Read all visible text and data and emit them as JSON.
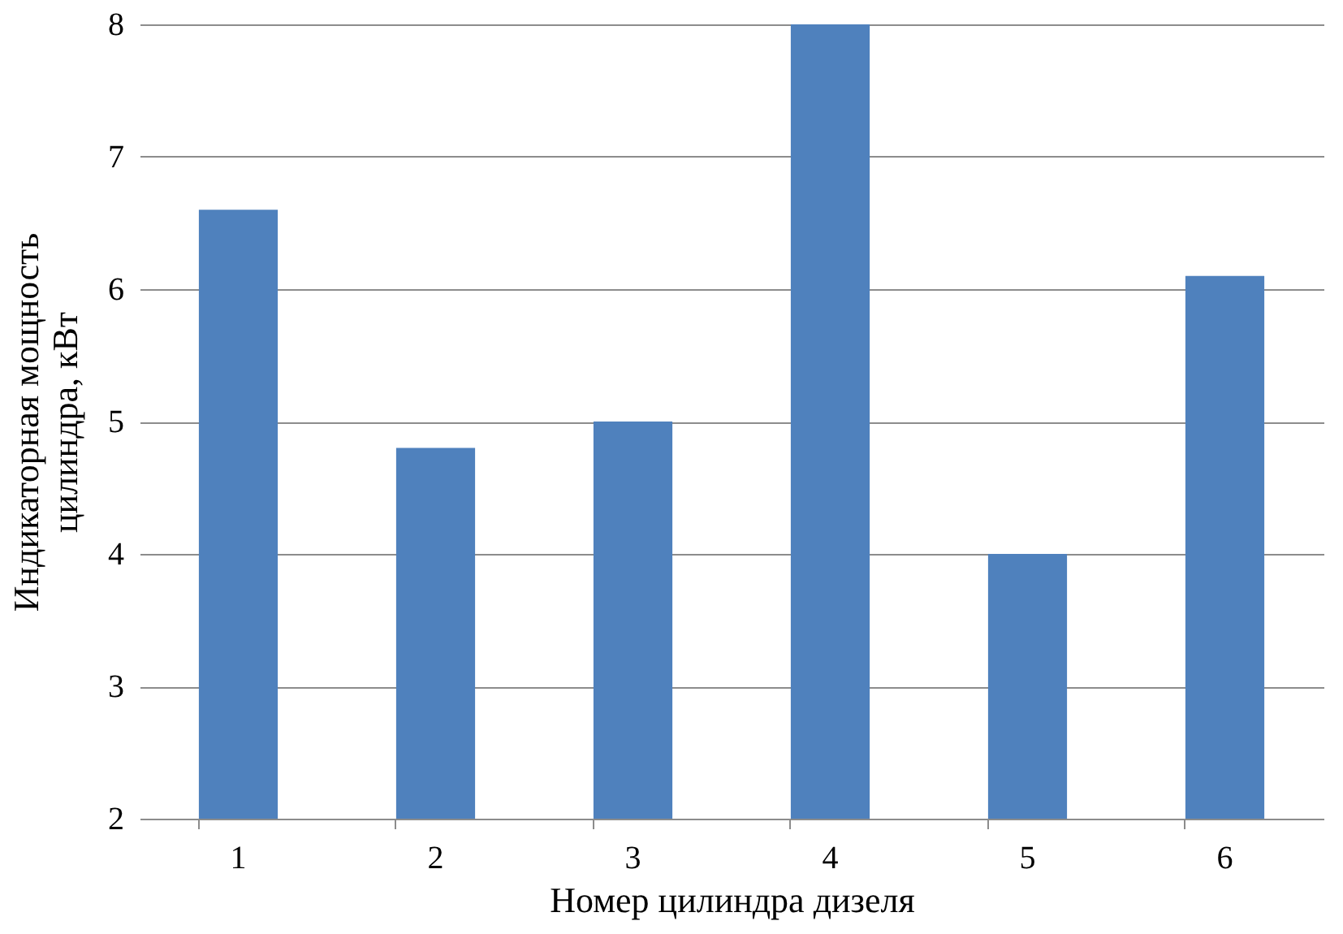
{
  "chart_data": {
    "type": "bar",
    "categories": [
      "1",
      "2",
      "3",
      "4",
      "5",
      "6"
    ],
    "values": [
      6.6,
      4.8,
      5.0,
      8.0,
      4.0,
      6.1
    ],
    "color": "#4f81bd",
    "xlabel": "Номер цилиндра дизеля",
    "ylabel": "Индикаторная мощность\nцилиндра, кВт",
    "ylim": [
      2,
      8
    ],
    "yticks": [
      2,
      3,
      4,
      5,
      6,
      7,
      8
    ],
    "grid": "y"
  }
}
